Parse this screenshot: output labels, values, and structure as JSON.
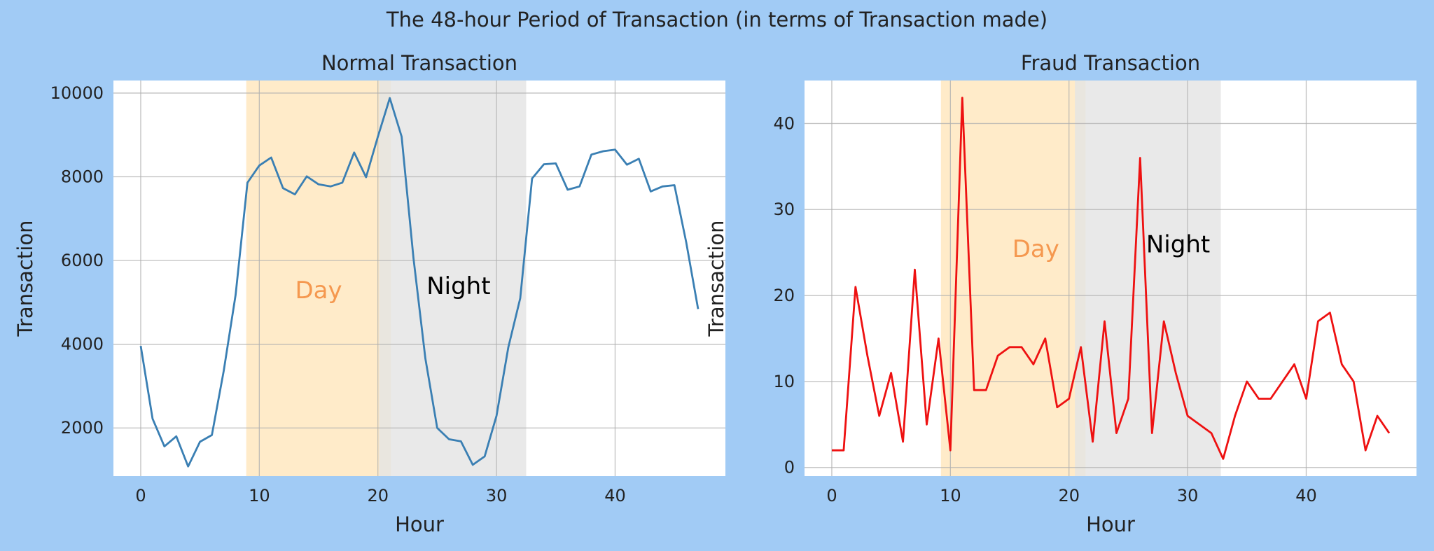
{
  "figure": {
    "title": "The 48-hour Period of Transaction (in terms of Transaction made)",
    "background_color": "#a1cbf5"
  },
  "chart_data": [
    {
      "type": "line",
      "title": "Normal Transaction",
      "xlabel": "Hour",
      "ylabel": "Transaction",
      "xlim": [
        -2.3,
        49.3
      ],
      "ylim": [
        850,
        10300
      ],
      "xticks": [
        0,
        10,
        20,
        30,
        40
      ],
      "yticks": [
        2000,
        4000,
        6000,
        8000,
        10000
      ],
      "grid": true,
      "line_color": "#3a7fb3",
      "x": [
        0,
        1,
        2,
        3,
        4,
        5,
        6,
        7,
        8,
        9,
        10,
        11,
        12,
        13,
        14,
        15,
        16,
        17,
        18,
        19,
        20,
        21,
        22,
        23,
        24,
        25,
        26,
        27,
        28,
        29,
        30,
        31,
        32,
        33,
        34,
        35,
        36,
        37,
        38,
        39,
        40,
        41,
        42,
        43,
        44,
        45,
        46,
        47
      ],
      "values": [
        3960,
        2220,
        1560,
        1800,
        1080,
        1670,
        1830,
        3360,
        5180,
        7860,
        8270,
        8460,
        7730,
        7580,
        8010,
        7820,
        7770,
        7860,
        8580,
        7990,
        8960,
        9880,
        8960,
        6060,
        3660,
        2000,
        1730,
        1680,
        1120,
        1320,
        2290,
        3930,
        5100,
        7960,
        8300,
        8320,
        7690,
        7770,
        8530,
        8610,
        8650,
        8290,
        8430,
        7650,
        7770,
        7800,
        6430,
        4840
      ],
      "spans": [
        {
          "label": "Day",
          "from": 8.9,
          "to": 21.1,
          "color": "#ffe6bd",
          "label_color": "#f5984f",
          "label_x": 15,
          "label_y": 5100
        },
        {
          "label": "Night",
          "from": 20.1,
          "to": 32.5,
          "color": "#e4e4e4",
          "label_color": "#000000",
          "label_x": 26.8,
          "label_y": 5200
        }
      ]
    },
    {
      "type": "line",
      "title": "Fraud Transaction",
      "xlabel": "Hour",
      "ylabel": "Transaction",
      "xlim": [
        -2.3,
        49.3
      ],
      "ylim": [
        -1,
        45
      ],
      "xticks": [
        0,
        10,
        20,
        30,
        40
      ],
      "yticks": [
        0,
        10,
        20,
        30,
        40
      ],
      "grid": true,
      "line_color": "#ee1111",
      "x": [
        0,
        1,
        2,
        3,
        4,
        5,
        6,
        7,
        8,
        9,
        10,
        11,
        12,
        13,
        14,
        15,
        16,
        17,
        18,
        19,
        20,
        21,
        22,
        23,
        24,
        25,
        26,
        27,
        28,
        29,
        30,
        31,
        32,
        33,
        34,
        35,
        36,
        37,
        38,
        39,
        40,
        41,
        42,
        43,
        44,
        45,
        46,
        47
      ],
      "values": [
        2,
        2,
        21,
        13,
        6,
        11,
        3,
        23,
        5,
        15,
        2,
        43,
        9,
        9,
        13,
        14,
        14,
        12,
        15,
        7,
        8,
        14,
        3,
        17,
        4,
        8,
        36,
        4,
        17,
        11,
        6,
        5,
        4,
        1,
        6,
        10,
        8,
        8,
        10,
        12,
        8,
        17,
        18,
        12,
        10,
        2,
        6,
        4
      ],
      "spans": [
        {
          "label": "Day",
          "from": 9.2,
          "to": 21.4,
          "color": "#ffe6bd",
          "label_color": "#f5984f",
          "label_x": 17.2,
          "label_y": 24.5
        },
        {
          "label": "Night",
          "from": 20.5,
          "to": 32.8,
          "color": "#e4e4e4",
          "label_color": "#000000",
          "label_x": 29.2,
          "label_y": 25.0
        }
      ]
    }
  ]
}
